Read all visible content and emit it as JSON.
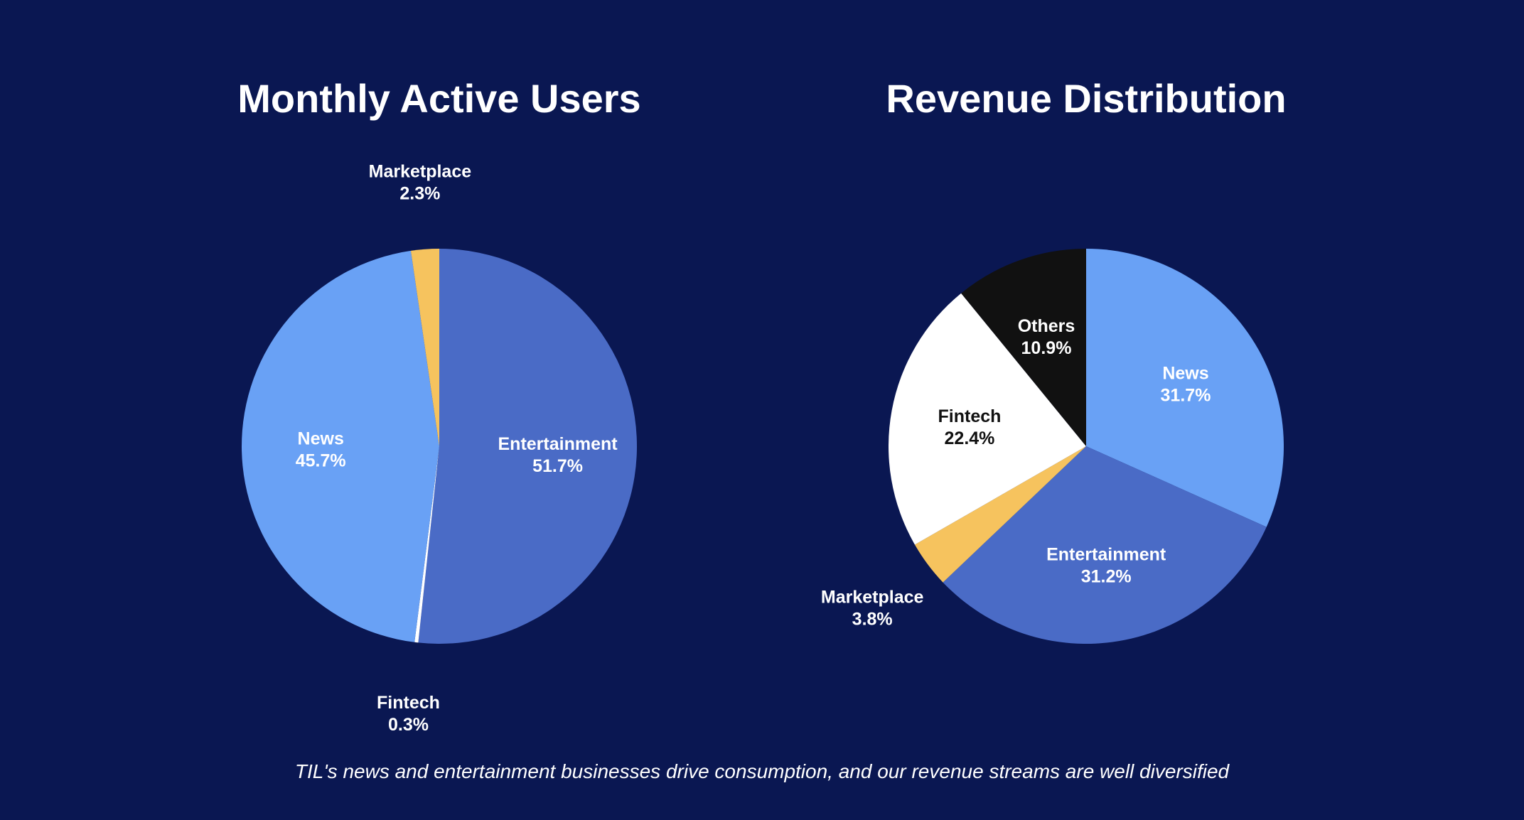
{
  "chart_data": [
    {
      "type": "pie",
      "title": "Monthly Active Users",
      "slices": [
        {
          "label": "Entertainment",
          "value": 51.7,
          "value_label": "51.7%",
          "color": "#4a6bc6",
          "text_color": "#ffffff"
        },
        {
          "label": "Fintech",
          "value": 0.3,
          "value_label": "0.3%",
          "color": "#ffffff",
          "text_color": "#ffffff"
        },
        {
          "label": "News",
          "value": 45.7,
          "value_label": "45.7%",
          "color": "#69a1f5",
          "text_color": "#ffffff"
        },
        {
          "label": "Marketplace",
          "value": 2.3,
          "value_label": "2.3%",
          "color": "#f6c35e",
          "text_color": "#ffffff"
        }
      ]
    },
    {
      "type": "pie",
      "title": "Revenue Distribution",
      "slices": [
        {
          "label": "News",
          "value": 31.7,
          "value_label": "31.7%",
          "color": "#69a1f5",
          "text_color": "#ffffff"
        },
        {
          "label": "Entertainment",
          "value": 31.2,
          "value_label": "31.2%",
          "color": "#4a6bc6",
          "text_color": "#ffffff"
        },
        {
          "label": "Marketplace",
          "value": 3.8,
          "value_label": "3.8%",
          "color": "#f6c35e",
          "text_color": "#ffffff"
        },
        {
          "label": "Fintech",
          "value": 22.4,
          "value_label": "22.4%",
          "color": "#ffffff",
          "text_color": "#111111"
        },
        {
          "label": "Others",
          "value": 10.9,
          "value_label": "10.9%",
          "color": "#111111",
          "text_color": "#ffffff"
        }
      ]
    }
  ],
  "footer": {
    "caption": "TIL's news and entertainment businesses drive consumption, and our revenue streams are well diversified"
  },
  "colors": {
    "background": "#0a1752"
  }
}
